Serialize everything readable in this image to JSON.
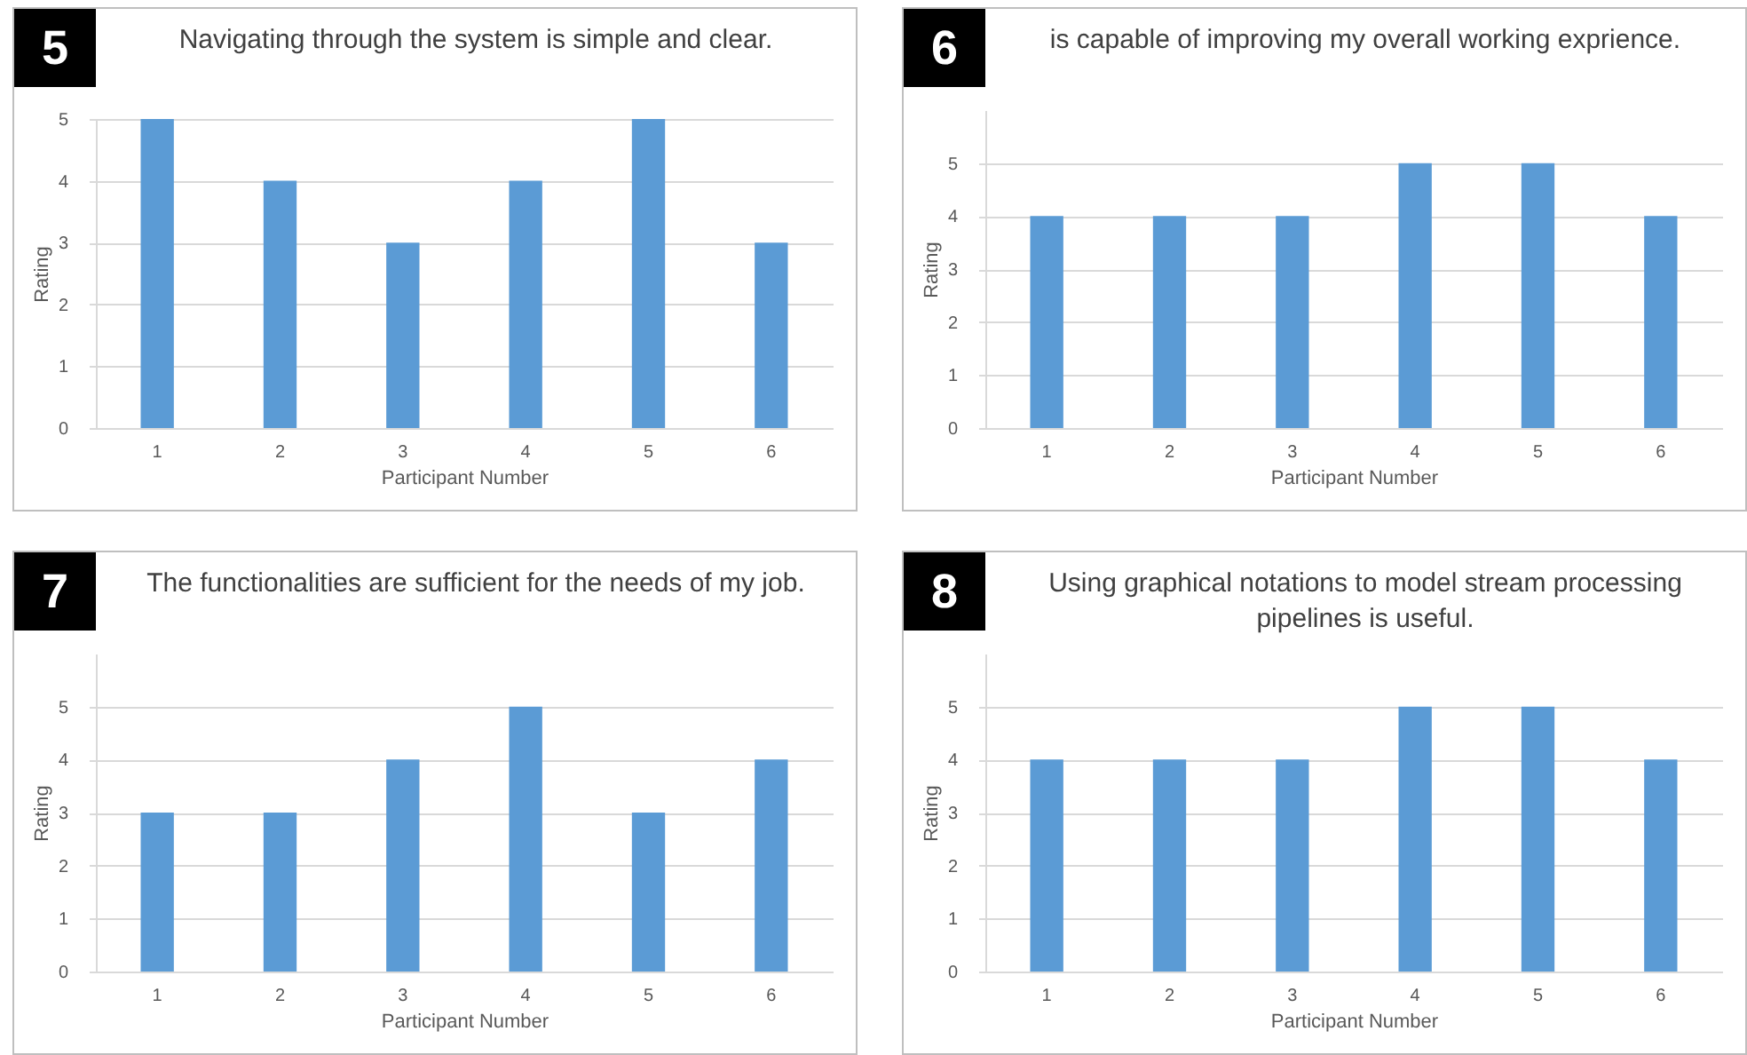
{
  "chart_data": [
    {
      "type": "bar",
      "title": "Navigating through the system is simple and clear.",
      "annotations": [
        "5"
      ],
      "categories": [
        "1",
        "2",
        "3",
        "4",
        "5",
        "6"
      ],
      "values": [
        5,
        4,
        3,
        4,
        5,
        3
      ],
      "color": "#5b9bd5",
      "xlabel": "Participant Number",
      "ylabel": "Rating",
      "ylim": [
        0,
        5
      ],
      "yticks": [
        0,
        1,
        2,
        3,
        4,
        5
      ],
      "grid": "y"
    },
    {
      "type": "bar",
      "title": "is capable of improving my overall working exprience.",
      "annotations": [
        "6"
      ],
      "categories": [
        "1",
        "2",
        "3",
        "4",
        "5",
        "6"
      ],
      "values": [
        4,
        4,
        4,
        5,
        5,
        4
      ],
      "color": "#5b9bd5",
      "xlabel": "Participant Number",
      "ylabel": "Rating",
      "ylim": [
        0,
        6
      ],
      "yticks": [
        0,
        1,
        2,
        3,
        4,
        5
      ],
      "grid": "y"
    },
    {
      "type": "bar",
      "title": "The functionalities are sufficient for the needs of my job.",
      "annotations": [
        "7"
      ],
      "categories": [
        "1",
        "2",
        "3",
        "4",
        "5",
        "6"
      ],
      "values": [
        3,
        3,
        4,
        5,
        3,
        4
      ],
      "color": "#5b9bd5",
      "xlabel": "Participant Number",
      "ylabel": "Rating",
      "ylim": [
        0,
        6
      ],
      "yticks": [
        0,
        1,
        2,
        3,
        4,
        5
      ],
      "grid": "y"
    },
    {
      "type": "bar",
      "title": "Using graphical notations to model stream processing pipelines is useful.",
      "annotations": [
        "8"
      ],
      "categories": [
        "1",
        "2",
        "3",
        "4",
        "5",
        "6"
      ],
      "values": [
        4,
        4,
        4,
        5,
        5,
        4
      ],
      "color": "#5b9bd5",
      "xlabel": "Participant Number",
      "ylabel": "Rating",
      "ylim": [
        0,
        6
      ],
      "yticks": [
        0,
        1,
        2,
        3,
        4,
        5
      ],
      "grid": "y"
    }
  ]
}
